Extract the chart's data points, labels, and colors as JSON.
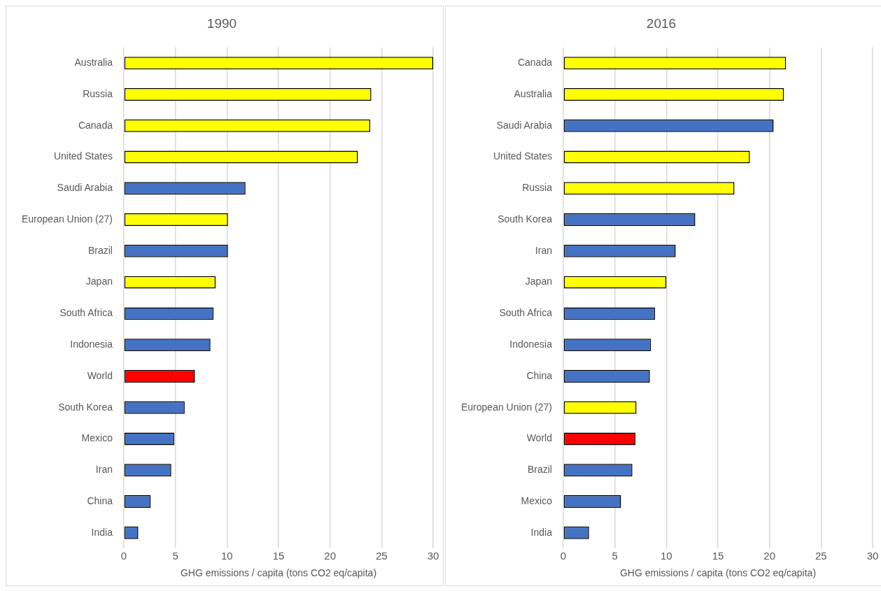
{
  "chart_data": [
    {
      "type": "bar",
      "orientation": "horizontal",
      "title": "1990",
      "xlabel": "GHG emissions / capita (tons CO2 eq/capita)",
      "categories": [
        "Australia",
        "Russia",
        "Canada",
        "United States",
        "Saudi Arabia",
        "European Union (27)",
        "Brazil",
        "Japan",
        "South Africa",
        "Indonesia",
        "World",
        "South Korea",
        "Mexico",
        "Iran",
        "China",
        "India"
      ],
      "values": [
        30.0,
        24.0,
        23.9,
        22.7,
        11.8,
        10.1,
        10.1,
        8.9,
        8.7,
        8.4,
        6.9,
        5.9,
        4.9,
        4.6,
        2.6,
        1.4
      ],
      "colors": [
        "#ffff00",
        "#ffff00",
        "#ffff00",
        "#ffff00",
        "#4472c4",
        "#ffff00",
        "#4472c4",
        "#ffff00",
        "#4472c4",
        "#4472c4",
        "#ff0000",
        "#4472c4",
        "#4472c4",
        "#4472c4",
        "#4472c4",
        "#4472c4"
      ],
      "xlim": [
        0,
        30
      ],
      "xticks": [
        0,
        5,
        10,
        15,
        20,
        25,
        30
      ],
      "grid": "x"
    },
    {
      "type": "bar",
      "orientation": "horizontal",
      "title": "2016",
      "xlabel": "GHG emissions / capita (tons CO2 eq/capita)",
      "categories": [
        "Canada",
        "Australia",
        "Saudi Arabia",
        "United States",
        "Russia",
        "South Korea",
        "Iran",
        "Japan",
        "South Africa",
        "Indonesia",
        "China",
        "European Union (27)",
        "World",
        "Brazil",
        "Mexico",
        "India"
      ],
      "values": [
        21.6,
        21.4,
        20.4,
        18.1,
        16.6,
        12.8,
        10.9,
        10.0,
        8.9,
        8.5,
        8.4,
        7.1,
        7.0,
        6.7,
        5.6,
        2.5
      ],
      "colors": [
        "#ffff00",
        "#ffff00",
        "#4472c4",
        "#ffff00",
        "#ffff00",
        "#4472c4",
        "#4472c4",
        "#ffff00",
        "#4472c4",
        "#4472c4",
        "#4472c4",
        "#ffff00",
        "#ff0000",
        "#4472c4",
        "#4472c4",
        "#4472c4"
      ],
      "xlim": [
        0,
        30
      ],
      "xticks": [
        0,
        5,
        10,
        15,
        20,
        25,
        30
      ],
      "grid": "x"
    }
  ]
}
